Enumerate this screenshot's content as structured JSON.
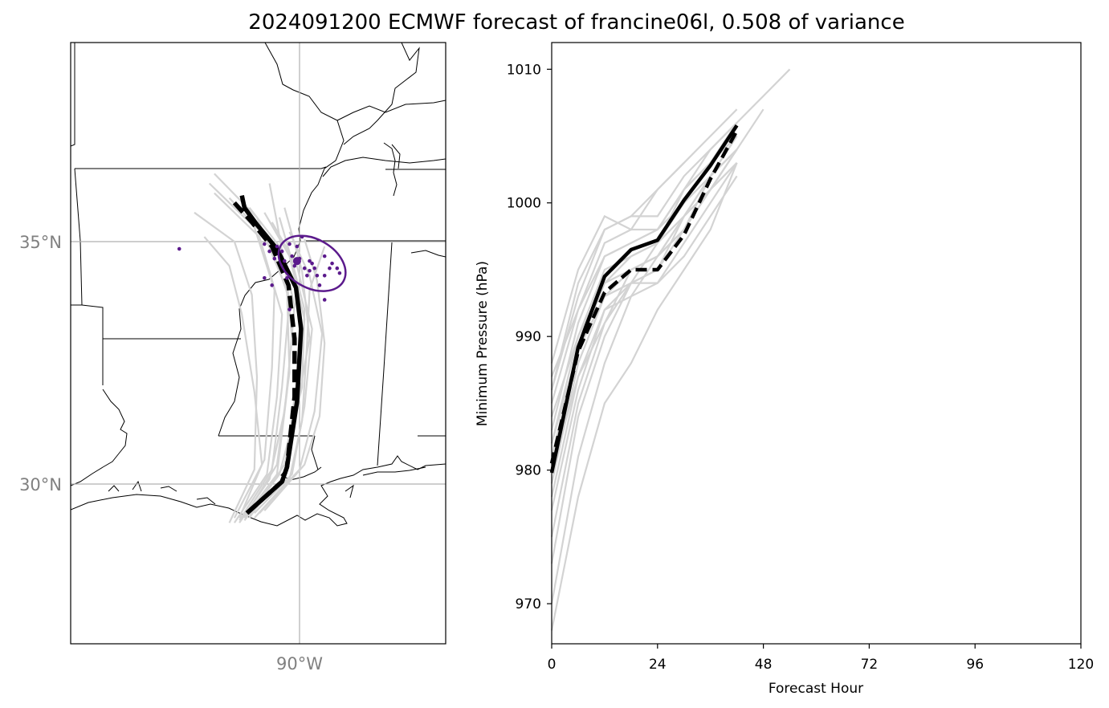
{
  "figure": {
    "title": "2024091200 ECMWF forecast of francine06l, 0.508 of variance"
  },
  "colors": {
    "ensemble": "#d3d3d3",
    "mean": "#000000",
    "points": "#5b1a8c",
    "grid": "#b0b0b0",
    "tick_text": "#808080"
  },
  "chart_data": [
    {
      "type": "map",
      "extent": {
        "lon": [
          -94.7,
          -87.0
        ],
        "lat": [
          26.7,
          39.1
        ]
      },
      "gridlines": {
        "lat": [
          30,
          35
        ],
        "lon": [
          -90
        ],
        "lat_labels": [
          "30°N",
          "35°N"
        ],
        "lon_labels": [
          "90°W"
        ]
      },
      "mean_track": [
        [
          -91.05,
          29.4
        ],
        [
          -90.35,
          30.05
        ],
        [
          -90.25,
          30.35
        ],
        [
          -90.05,
          31.7
        ],
        [
          -89.97,
          33.2
        ],
        [
          -90.07,
          34.05
        ],
        [
          -90.45,
          34.85
        ],
        [
          -90.85,
          35.35
        ],
        [
          -91.1,
          35.7
        ],
        [
          -91.15,
          35.95
        ]
      ],
      "dashed_track": [
        [
          -91.05,
          29.4
        ],
        [
          -90.35,
          30.05
        ],
        [
          -90.25,
          30.35
        ],
        [
          -90.1,
          31.8
        ],
        [
          -90.1,
          33.0
        ],
        [
          -90.22,
          34.1
        ],
        [
          -90.55,
          34.9
        ],
        [
          -90.95,
          35.4
        ],
        [
          -91.3,
          35.8
        ]
      ],
      "ensemble_tracks": [
        [
          [
            -91.3,
            29.2
          ],
          [
            -90.65,
            30.2
          ],
          [
            -90.45,
            31.8
          ],
          [
            -90.35,
            33.5
          ],
          [
            -90.8,
            35.1
          ],
          [
            -91.7,
            36.0
          ]
        ],
        [
          [
            -91.2,
            29.25
          ],
          [
            -90.55,
            30.3
          ],
          [
            -90.35,
            32.0
          ],
          [
            -90.2,
            33.8
          ],
          [
            -90.6,
            35.0
          ],
          [
            -91.4,
            35.9
          ]
        ],
        [
          [
            -91.1,
            29.3
          ],
          [
            -90.45,
            30.2
          ],
          [
            -90.25,
            31.9
          ],
          [
            -90.1,
            33.7
          ],
          [
            -90.4,
            34.9
          ],
          [
            -91.0,
            35.7
          ]
        ],
        [
          [
            -91.0,
            29.35
          ],
          [
            -90.3,
            30.15
          ],
          [
            -90.1,
            31.8
          ],
          [
            -89.9,
            33.4
          ],
          [
            -90.2,
            34.7
          ],
          [
            -90.7,
            35.6
          ]
        ],
        [
          [
            -90.9,
            29.4
          ],
          [
            -90.15,
            30.2
          ],
          [
            -89.9,
            31.6
          ],
          [
            -89.75,
            33.2
          ],
          [
            -90.05,
            34.5
          ],
          [
            -90.55,
            35.4
          ]
        ],
        [
          [
            -90.8,
            29.4
          ],
          [
            -90.0,
            30.3
          ],
          [
            -89.7,
            31.5
          ],
          [
            -89.55,
            33.1
          ],
          [
            -89.8,
            34.3
          ],
          [
            -90.2,
            35.2
          ]
        ],
        [
          [
            -90.7,
            29.45
          ],
          [
            -89.9,
            30.4
          ],
          [
            -89.6,
            31.4
          ],
          [
            -89.5,
            32.9
          ],
          [
            -89.65,
            34.2
          ],
          [
            -89.9,
            35.05
          ]
        ],
        [
          [
            -91.4,
            29.2
          ],
          [
            -90.9,
            30.3
          ],
          [
            -90.85,
            32.2
          ],
          [
            -90.95,
            33.9
          ],
          [
            -91.3,
            35.0
          ],
          [
            -92.1,
            35.6
          ]
        ],
        [
          [
            -91.3,
            29.3
          ],
          [
            -90.7,
            30.5
          ],
          [
            -90.55,
            32.4
          ],
          [
            -90.5,
            34.0
          ],
          [
            -90.9,
            35.3
          ],
          [
            -91.8,
            36.2
          ]
        ],
        [
          [
            -91.2,
            29.2
          ],
          [
            -90.6,
            30.1
          ],
          [
            -90.3,
            31.5
          ],
          [
            -90.15,
            33.0
          ],
          [
            -90.25,
            34.2
          ],
          [
            -90.45,
            35.4
          ],
          [
            -90.6,
            36.2
          ]
        ],
        [
          [
            -90.9,
            29.3
          ],
          [
            -90.2,
            30.1
          ],
          [
            -89.95,
            31.3
          ],
          [
            -89.85,
            32.9
          ],
          [
            -89.8,
            34.0
          ],
          [
            -89.5,
            34.9
          ]
        ],
        [
          [
            -91.2,
            29.3
          ],
          [
            -90.75,
            30.4
          ],
          [
            -90.9,
            31.9
          ],
          [
            -91.15,
            33.5
          ],
          [
            -91.4,
            34.5
          ],
          [
            -91.9,
            35.1
          ]
        ],
        [
          [
            -91.05,
            29.4
          ],
          [
            -90.45,
            30.4
          ],
          [
            -90.2,
            32.3
          ],
          [
            -90.25,
            34.0
          ],
          [
            -90.85,
            35.5
          ],
          [
            -91.7,
            36.4
          ]
        ],
        [
          [
            -91.1,
            29.25
          ],
          [
            -90.4,
            30.2
          ],
          [
            -90.05,
            31.6
          ],
          [
            -89.8,
            33.0
          ],
          [
            -89.95,
            34.4
          ],
          [
            -90.3,
            35.7
          ]
        ],
        [
          [
            -91.0,
            29.3
          ],
          [
            -90.3,
            30.4
          ],
          [
            -89.95,
            32.0
          ],
          [
            -89.9,
            33.6
          ],
          [
            -90.15,
            34.6
          ],
          [
            -90.4,
            35.5
          ]
        ]
      ],
      "endpoint_ellipse": {
        "center": [
          -89.75,
          34.55
        ],
        "rx": 0.72,
        "ry": 0.5,
        "angle_deg": 30
      },
      "endpoints": [
        [
          -92.4,
          34.85
        ],
        [
          -90.7,
          34.95
        ],
        [
          -90.6,
          34.8
        ],
        [
          -90.45,
          34.9
        ],
        [
          -90.35,
          34.8
        ],
        [
          -90.2,
          34.95
        ],
        [
          -90.5,
          34.65
        ],
        [
          -90.3,
          34.6
        ],
        [
          -90.15,
          34.7
        ],
        [
          -90.0,
          34.65
        ],
        [
          -90.1,
          34.5
        ],
        [
          -89.9,
          34.45
        ],
        [
          -89.75,
          34.55
        ],
        [
          -89.5,
          34.7
        ],
        [
          -89.35,
          34.55
        ],
        [
          -89.25,
          34.45
        ],
        [
          -89.4,
          34.45
        ],
        [
          -89.65,
          34.3
        ],
        [
          -89.85,
          34.3
        ],
        [
          -90.25,
          34.25
        ],
        [
          -90.55,
          34.1
        ],
        [
          -90.7,
          34.25
        ],
        [
          -89.6,
          34.1
        ],
        [
          -89.5,
          34.3
        ],
        [
          -89.8,
          34.6
        ],
        [
          -90.05,
          34.9
        ],
        [
          -89.95,
          35.1
        ],
        [
          -89.5,
          33.8
        ],
        [
          -90.2,
          33.6
        ],
        [
          -89.8,
          34.4
        ],
        [
          -89.7,
          34.45
        ],
        [
          -89.2,
          34.35
        ]
      ],
      "endpoint_mean": [
        -90.05,
        34.6
      ]
    },
    {
      "type": "line",
      "xlabel": "Forecast Hour",
      "ylabel": "Minimum Pressure (hPa)",
      "xlim": [
        0,
        120
      ],
      "ylim": [
        967,
        1012
      ],
      "xticks": [
        0,
        24,
        48,
        72,
        96,
        120
      ],
      "yticks": [
        970,
        980,
        990,
        1000,
        1010
      ],
      "grid": false,
      "mean": {
        "x": [
          0,
          6,
          12,
          18,
          24,
          30,
          36,
          42
        ],
        "values": [
          979.8,
          989.2,
          994.5,
          996.5,
          997.2,
          1000.2,
          1002.8,
          1005.8
        ]
      },
      "dashed": {
        "x": [
          0,
          6,
          12,
          18,
          24,
          30,
          36,
          42
        ],
        "values": [
          980.5,
          988.9,
          993.3,
          995.0,
          995.0,
          997.6,
          1001.8,
          1005.4
        ]
      },
      "ensemble": [
        {
          "x": [
            0,
            6,
            12,
            18,
            24,
            30,
            36,
            42
          ],
          "values": [
            988,
            995,
            999,
            998,
            1001,
            1003,
            1005,
            1007
          ]
        },
        {
          "x": [
            0,
            6,
            12,
            18,
            24,
            30,
            36,
            42
          ],
          "values": [
            986,
            993,
            998,
            999,
            999,
            1002,
            1004,
            1006
          ]
        },
        {
          "x": [
            0,
            6,
            12,
            18,
            24,
            30,
            36,
            42
          ],
          "values": [
            985,
            992,
            997,
            998,
            998,
            1001,
            1003,
            1006
          ]
        },
        {
          "x": [
            0,
            6,
            12,
            18,
            24,
            30,
            36,
            42
          ],
          "values": [
            983,
            991,
            996,
            997,
            998,
            1000,
            1003,
            1005
          ]
        },
        {
          "x": [
            0,
            6,
            12,
            18,
            24,
            30,
            36,
            42
          ],
          "values": [
            982,
            990,
            995,
            996,
            997,
            1000,
            1002,
            1005
          ]
        },
        {
          "x": [
            0,
            6,
            12,
            18,
            24,
            30,
            36,
            42
          ],
          "values": [
            981,
            989,
            994,
            996,
            997,
            999,
            1002,
            1004
          ]
        },
        {
          "x": [
            0,
            6,
            12,
            18,
            24,
            30,
            36,
            42
          ],
          "values": [
            979,
            988,
            993,
            995,
            996,
            999,
            1001,
            1004
          ]
        },
        {
          "x": [
            0,
            6,
            12,
            18,
            24,
            30,
            36,
            42
          ],
          "values": [
            978,
            987,
            992,
            994,
            995,
            998,
            1001,
            1003
          ]
        },
        {
          "x": [
            0,
            6,
            12,
            18,
            24,
            30,
            36,
            42
          ],
          "values": [
            977,
            986,
            992,
            993,
            994,
            997,
            1000,
            1003
          ]
        },
        {
          "x": [
            0,
            6,
            12,
            18,
            24,
            30,
            36,
            42
          ],
          "values": [
            975,
            985,
            991,
            995,
            996,
            998,
            1002,
            1004
          ]
        },
        {
          "x": [
            0,
            6,
            12,
            18,
            24,
            30,
            36,
            42
          ],
          "values": [
            973,
            984,
            990,
            994,
            995,
            999,
            1002,
            1005
          ]
        },
        {
          "x": [
            0,
            6,
            12,
            18,
            24,
            30,
            36,
            42
          ],
          "values": [
            970,
            981,
            988,
            993,
            996,
            998,
            1001,
            1004
          ]
        },
        {
          "x": [
            0,
            6,
            12,
            18,
            24,
            30,
            36,
            42
          ],
          "values": [
            968,
            978,
            985,
            988,
            992,
            995,
            998,
            1003
          ]
        },
        {
          "x": [
            0,
            6,
            12,
            18,
            24,
            30,
            36,
            42,
            48
          ],
          "values": [
            984,
            990,
            994,
            995,
            996,
            999,
            1001,
            1004,
            1007
          ]
        },
        {
          "x": [
            0,
            6,
            12,
            18,
            24,
            30,
            36,
            42,
            48,
            54
          ],
          "values": [
            987,
            992,
            996,
            997,
            998,
            1001,
            1003,
            1006,
            1008,
            1010
          ]
        },
        {
          "x": [
            0,
            6,
            12,
            18,
            24,
            30
          ],
          "values": [
            986,
            994,
            998,
            999,
            1001,
            1003
          ]
        },
        {
          "x": [
            0,
            6,
            12,
            18,
            24,
            30,
            36,
            42
          ],
          "values": [
            980,
            987,
            991,
            994,
            994,
            996,
            999,
            1002
          ]
        },
        {
          "x": [
            0,
            6,
            12,
            18,
            24,
            30,
            36,
            42
          ],
          "values": [
            982,
            989,
            993,
            994,
            997,
            1001,
            1004,
            1006
          ]
        }
      ]
    }
  ]
}
